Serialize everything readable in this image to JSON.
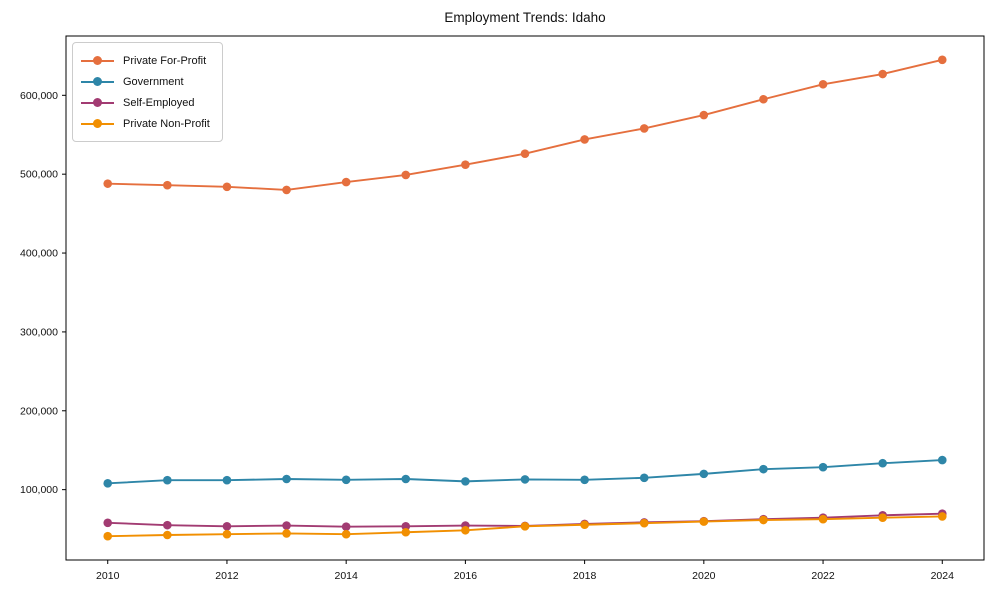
{
  "title": "Employment Trends: Idaho",
  "chart_data": {
    "type": "line",
    "title": "Employment Trends: Idaho",
    "xlabel": "",
    "ylabel": "",
    "x": [
      2010,
      2011,
      2012,
      2013,
      2014,
      2015,
      2016,
      2017,
      2018,
      2019,
      2020,
      2021,
      2022,
      2023,
      2024
    ],
    "series": [
      {
        "name": "Private For-Profit",
        "color": "#E56F3E",
        "values": [
          488000,
          486000,
          484000,
          480000,
          490000,
          499000,
          512000,
          526000,
          544000,
          558000,
          575000,
          595000,
          614000,
          627000,
          645000
        ]
      },
      {
        "name": "Government",
        "color": "#2E86A8",
        "values": [
          108000,
          112000,
          112000,
          113500,
          112500,
          113500,
          110500,
          113000,
          112500,
          115000,
          120000,
          126000,
          128500,
          133500,
          137500
        ]
      },
      {
        "name": "Self-Employed",
        "color": "#A23B72",
        "values": [
          58000,
          55000,
          53500,
          54500,
          53000,
          53500,
          54500,
          54000,
          56500,
          58500,
          60000,
          62500,
          64500,
          67500,
          69500
        ]
      },
      {
        "name": "Private Non-Profit",
        "color": "#F18F01",
        "values": [
          41000,
          42500,
          43500,
          44500,
          43500,
          46000,
          48500,
          53500,
          55500,
          57500,
          59500,
          61500,
          62500,
          64500,
          66000
        ]
      }
    ],
    "xticks": [
      2010,
      2012,
      2014,
      2016,
      2018,
      2020,
      2022,
      2024
    ],
    "yticks": [
      100000,
      200000,
      300000,
      400000,
      500000,
      600000
    ],
    "ytick_labels": [
      "100,000",
      "200,000",
      "300,000",
      "400,000",
      "500,000",
      "600,000"
    ],
    "xlim": [
      2009.3,
      2024.7
    ],
    "ylim": [
      10800,
      675200
    ],
    "grid": false,
    "legend_position": "upper left",
    "marker": "circle",
    "axis_color": "#000000"
  }
}
